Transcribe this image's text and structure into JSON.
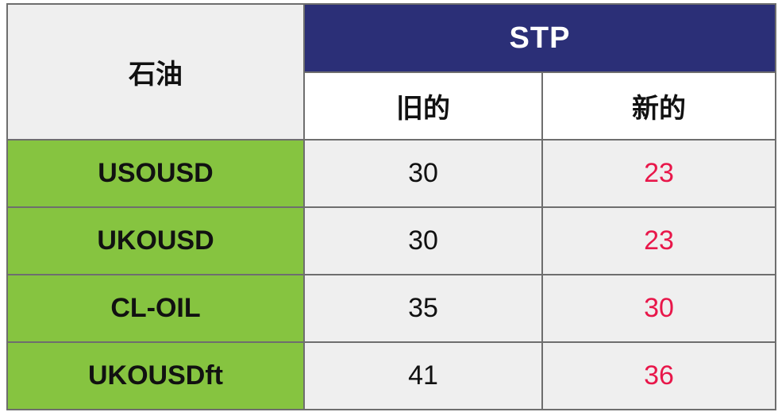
{
  "header": {
    "corner_label": "石油",
    "group_label": "STP",
    "old_label": "旧的",
    "new_label": "新的"
  },
  "rows": [
    {
      "symbol": "USOUSD",
      "old": "30",
      "new": "23"
    },
    {
      "symbol": "UKOUSD",
      "old": "30",
      "new": "23"
    },
    {
      "symbol": "CL-OIL",
      "old": "35",
      "new": "30"
    },
    {
      "symbol": "UKOUSDft",
      "old": "41",
      "new": "36"
    }
  ],
  "colors": {
    "header_bg": "#2b2f77",
    "symbol_bg": "#86c440",
    "new_value": "#e8174a",
    "cell_bg": "#efefef",
    "border": "#6e6e6e"
  }
}
